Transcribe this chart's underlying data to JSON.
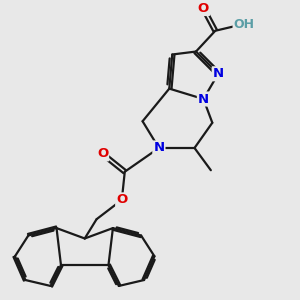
{
  "bg_color": "#e8e8e8",
  "bond_color": "#1a1a1a",
  "bond_width": 1.6,
  "atom_colors": {
    "N": "#0000e0",
    "O": "#e00000",
    "H": "#5b9ea6",
    "C": "#1a1a1a"
  },
  "font_size_atom": 9.5,
  "fig_size": [
    3.0,
    3.0
  ],
  "dpi": 100
}
